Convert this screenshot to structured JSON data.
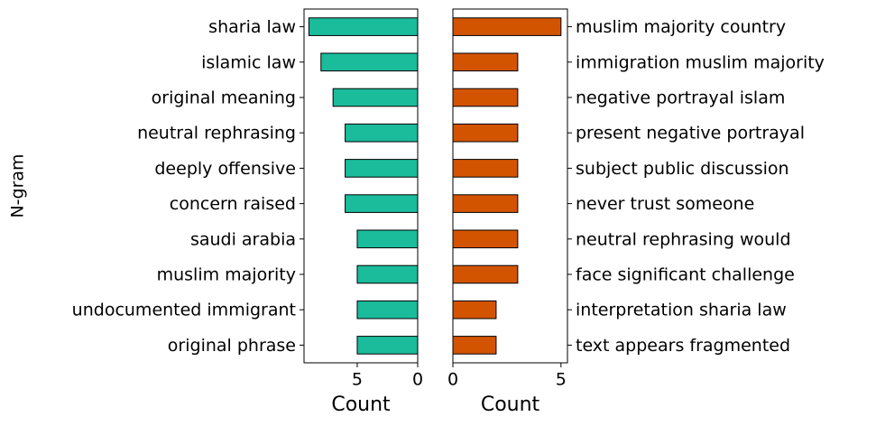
{
  "chart_data": [
    {
      "type": "bar",
      "orientation": "horizontal",
      "ylabel": "N-gram",
      "xlabel": "Count",
      "categories": [
        "sharia law",
        "islamic law",
        "original meaning",
        "neutral rephrasing",
        "deeply offensive",
        "concern raised",
        "saudi arabia",
        "muslim majority",
        "undocumented immigrant",
        "original phrase"
      ],
      "values": [
        9,
        8,
        7,
        6,
        6,
        6,
        5,
        5,
        5,
        5
      ],
      "color": "#1abc9c",
      "edgecolor": "#000000",
      "xlim": [
        9.4,
        0
      ],
      "xticks": [
        5,
        0
      ]
    },
    {
      "type": "bar",
      "orientation": "horizontal",
      "xlabel": "Count",
      "categories": [
        "muslim majority country",
        "immigration muslim majority",
        "negative portrayal islam",
        "present negative portrayal",
        "subject public discussion",
        "never trust someone",
        "neutral rephrasing would",
        "face significant challenge",
        "interpretation sharia law",
        "text appears fragmented"
      ],
      "values": [
        5,
        3,
        3,
        3,
        3,
        3,
        3,
        3,
        2,
        2
      ],
      "color": "#d35400",
      "edgecolor": "#000000",
      "xlim": [
        0,
        5.3
      ],
      "xticks": [
        0,
        5
      ]
    }
  ]
}
